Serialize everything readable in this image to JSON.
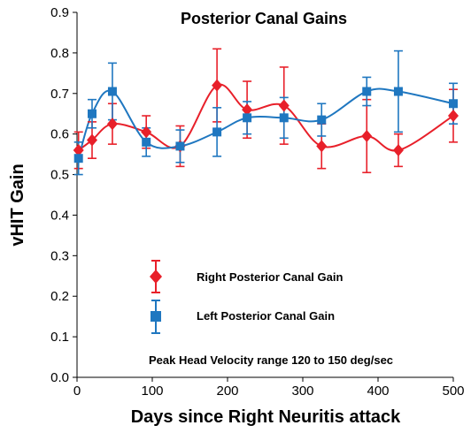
{
  "chart_data": {
    "type": "line",
    "title": "Posterior Canal Gains",
    "xlabel": "Days since Right Neuritis attack",
    "ylabel": "vHIT Gain",
    "xlim": [
      0,
      500
    ],
    "ylim": [
      0,
      0.9
    ],
    "x_ticks": [
      0,
      100,
      200,
      300,
      400,
      500
    ],
    "y_ticks": [
      0.0,
      0.1,
      0.2,
      0.3,
      0.4,
      0.5,
      0.6,
      0.7,
      0.8,
      0.9
    ],
    "x_tick_labels": [
      "0",
      "100",
      "200",
      "300",
      "400",
      "500"
    ],
    "y_tick_labels": [
      "0.0",
      "0.1",
      "0.2",
      "0.3",
      "0.4",
      "0.5",
      "0.6",
      "0.7",
      "0.8",
      "0.9"
    ],
    "grid": false,
    "legend": {
      "placement": "center-left"
    },
    "annotation": "Peak Head Velocity range 120 to 150 deg/sec",
    "series": [
      {
        "name": "Right Posterior Canal Gain",
        "color": "#e8202a",
        "marker": "diamond",
        "points": [
          {
            "x": 2,
            "y": 0.56,
            "err": 0.045
          },
          {
            "x": 20,
            "y": 0.585,
            "err": 0.045
          },
          {
            "x": 47,
            "y": 0.625,
            "err": 0.05
          },
          {
            "x": 92,
            "y": 0.605,
            "err": 0.04
          },
          {
            "x": 137,
            "y": 0.57,
            "err": 0.05
          },
          {
            "x": 186,
            "y": 0.72,
            "err": 0.09
          },
          {
            "x": 226,
            "y": 0.66,
            "err": 0.07
          },
          {
            "x": 275,
            "y": 0.67,
            "err": 0.095
          },
          {
            "x": 325,
            "y": 0.57,
            "err": 0.055
          },
          {
            "x": 385,
            "y": 0.595,
            "err": 0.09
          },
          {
            "x": 427,
            "y": 0.56,
            "err": 0.04
          },
          {
            "x": 500,
            "y": 0.645,
            "err": 0.065
          }
        ]
      },
      {
        "name": "Left Posterior Canal Gain",
        "color": "#1f77c0",
        "marker": "square",
        "points": [
          {
            "x": 2,
            "y": 0.54,
            "err": 0.04
          },
          {
            "x": 20,
            "y": 0.65,
            "err": 0.035
          },
          {
            "x": 47,
            "y": 0.705,
            "err": 0.07
          },
          {
            "x": 92,
            "y": 0.58,
            "err": 0.035
          },
          {
            "x": 137,
            "y": 0.57,
            "err": 0.04
          },
          {
            "x": 186,
            "y": 0.605,
            "err": 0.06
          },
          {
            "x": 226,
            "y": 0.64,
            "err": 0.04
          },
          {
            "x": 275,
            "y": 0.64,
            "err": 0.05
          },
          {
            "x": 325,
            "y": 0.635,
            "err": 0.04
          },
          {
            "x": 385,
            "y": 0.705,
            "err": 0.035
          },
          {
            "x": 427,
            "y": 0.705,
            "err": 0.1
          },
          {
            "x": 500,
            "y": 0.675,
            "err": 0.05
          }
        ]
      }
    ]
  }
}
